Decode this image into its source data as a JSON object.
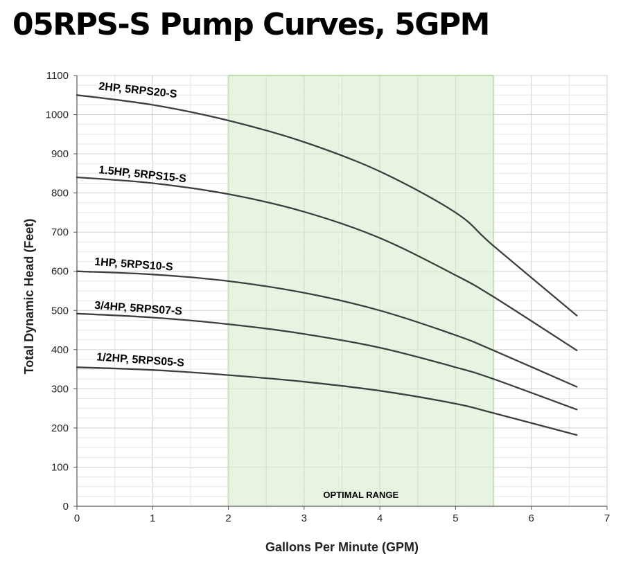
{
  "page_title": "05RPS-S Pump Curves, 5GPM",
  "chart_data": {
    "type": "line",
    "title": "05RPS-S Pump Curves, 5GPM",
    "xlabel": "Gallons Per Minute (GPM)",
    "ylabel": "Total Dynamic Head (Feet)",
    "xlim": [
      0,
      7
    ],
    "ylim": [
      0,
      1100
    ],
    "x_ticks": [
      0,
      1,
      2,
      3,
      4,
      5,
      6,
      7
    ],
    "y_ticks": [
      0,
      100,
      200,
      300,
      400,
      500,
      600,
      700,
      800,
      900,
      1000,
      1100
    ],
    "grid": true,
    "optimal_range": {
      "label": "OPTIMAL RANGE",
      "x_start": 2,
      "x_end": 5.5,
      "color": "#e3f2dc",
      "edge_color": "#b9dcaa"
    },
    "line_color": "#3a4040",
    "series": [
      {
        "name": "2HP,  5RPS20-S",
        "points": [
          [
            0,
            1050
          ],
          [
            1,
            1025
          ],
          [
            2,
            985
          ],
          [
            3,
            930
          ],
          [
            4,
            855
          ],
          [
            5,
            750
          ],
          [
            5.5,
            665
          ],
          [
            6.6,
            487
          ]
        ]
      },
      {
        "name": "1.5HP, 5RPS15-S",
        "points": [
          [
            0,
            840
          ],
          [
            1,
            825
          ],
          [
            2,
            797
          ],
          [
            3,
            752
          ],
          [
            4,
            685
          ],
          [
            5,
            590
          ],
          [
            5.5,
            535
          ],
          [
            6.6,
            398
          ]
        ]
      },
      {
        "name": "1HP, 5RPS10-S",
        "points": [
          [
            0,
            600
          ],
          [
            1,
            592
          ],
          [
            2,
            575
          ],
          [
            3,
            545
          ],
          [
            4,
            500
          ],
          [
            5,
            437
          ],
          [
            5.5,
            398
          ],
          [
            6.6,
            305
          ]
        ]
      },
      {
        "name": "3/4HP, 5RPS07-S",
        "points": [
          [
            0,
            492
          ],
          [
            1,
            482
          ],
          [
            2,
            465
          ],
          [
            3,
            440
          ],
          [
            4,
            405
          ],
          [
            5,
            355
          ],
          [
            5.5,
            325
          ],
          [
            6.6,
            247
          ]
        ]
      },
      {
        "name": "1/2HP, 5RPS05-S",
        "points": [
          [
            0,
            355
          ],
          [
            1,
            348
          ],
          [
            2,
            335
          ],
          [
            3,
            318
          ],
          [
            4,
            295
          ],
          [
            5,
            262
          ],
          [
            5.5,
            238
          ],
          [
            6.6,
            182
          ]
        ]
      }
    ]
  }
}
